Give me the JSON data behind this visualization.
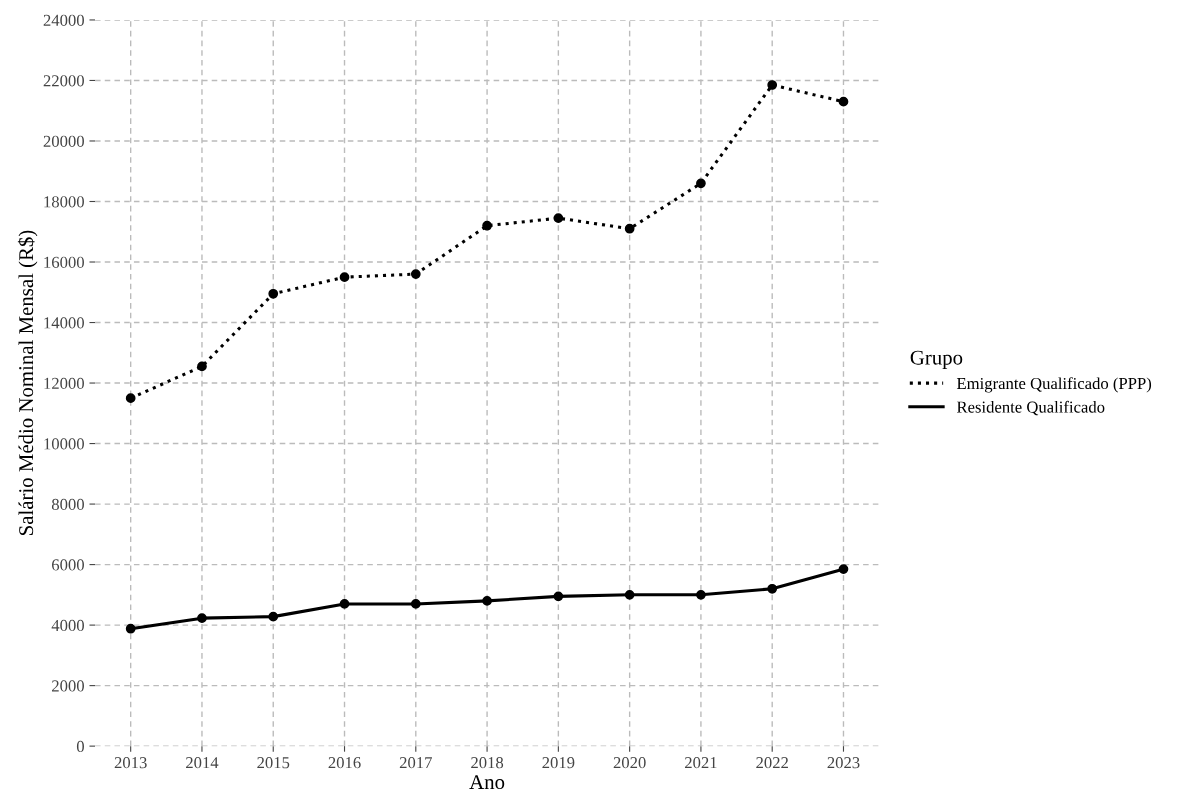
{
  "chart_data": {
    "type": "line",
    "xlabel": "Ano",
    "ylabel": "Salário Médio Nominal Mensal (R$)",
    "legend_title": "Grupo",
    "categories": [
      "2013",
      "2014",
      "2015",
      "2016",
      "2017",
      "2018",
      "2019",
      "2020",
      "2021",
      "2022",
      "2023"
    ],
    "series": [
      {
        "name": "Emigrante Qualificado (PPP)",
        "color": "#000000",
        "line_style": "dotted",
        "values": [
          11500,
          12550,
          14950,
          15500,
          15600,
          17200,
          17450,
          17100,
          18600,
          21850,
          21300
        ]
      },
      {
        "name": "Residente Qualificado",
        "color": "#000000",
        "line_style": "solid",
        "values": [
          3880,
          4230,
          4280,
          4700,
          4700,
          4800,
          4950,
          5000,
          5000,
          5200,
          5850
        ]
      }
    ],
    "ylim": [
      0,
      24000
    ],
    "yticks": [
      0,
      2000,
      4000,
      6000,
      8000,
      10000,
      12000,
      14000,
      16000,
      18000,
      20000,
      22000,
      24000
    ],
    "grid": true,
    "legend": "right",
    "marker": "circle"
  }
}
